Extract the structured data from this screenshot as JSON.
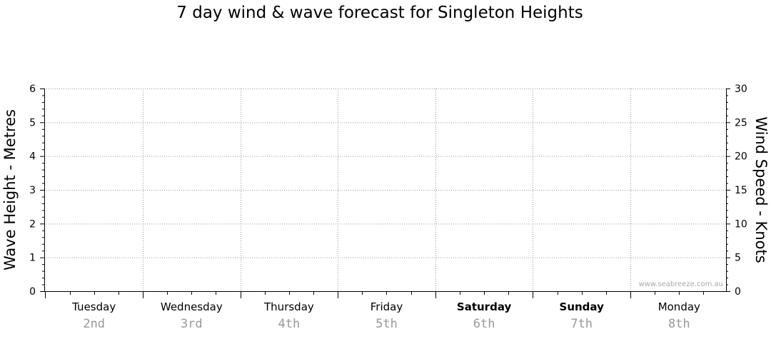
{
  "chart_data": {
    "type": "line",
    "title": "7 day wind & wave forecast for Singleton Heights",
    "left_axis": {
      "label": "Wave Height - Metres",
      "ylim": [
        0,
        6
      ],
      "ticks": [
        "0",
        "1",
        "2",
        "3",
        "4",
        "5",
        "6"
      ]
    },
    "right_axis": {
      "label": "Wind Speed - Knots",
      "ylim": [
        0,
        30
      ],
      "ticks": [
        "0",
        "5",
        "10",
        "15",
        "20",
        "25",
        "30"
      ]
    },
    "x_categories": [
      {
        "day": "Tuesday",
        "date": "2nd",
        "bold": false
      },
      {
        "day": "Wednesday",
        "date": "3rd",
        "bold": false
      },
      {
        "day": "Thursday",
        "date": "4th",
        "bold": false
      },
      {
        "day": "Friday",
        "date": "5th",
        "bold": false
      },
      {
        "day": "Saturday",
        "date": "6th",
        "bold": true
      },
      {
        "day": "Sunday",
        "date": "7th",
        "bold": true
      },
      {
        "day": "Monday",
        "date": "8th",
        "bold": false
      }
    ],
    "series": [],
    "grid": true,
    "watermark": "www.seabreeze.com.au"
  }
}
